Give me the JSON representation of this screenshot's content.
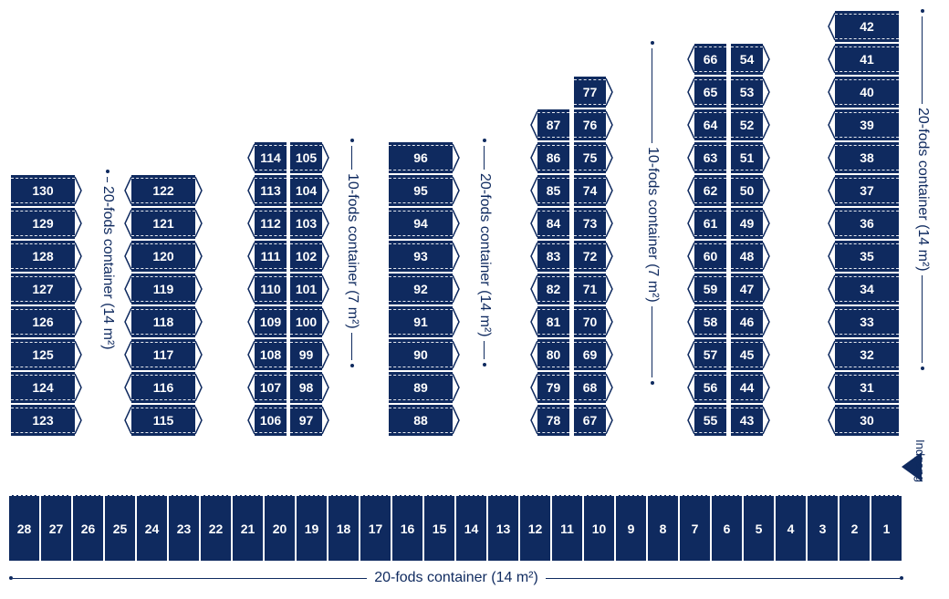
{
  "colors": {
    "unit": "#0f2a5f",
    "text": "#ffffff",
    "label": "#0f2a5f"
  },
  "columns": [
    {
      "id": "c1",
      "units": [
        "130",
        "129",
        "128",
        "127",
        "126",
        "125",
        "124",
        "123"
      ]
    },
    {
      "id": "c2",
      "units": [
        "122",
        "121",
        "120",
        "119",
        "118",
        "117",
        "116",
        "115"
      ]
    },
    {
      "id": "c3a",
      "units": [
        "114",
        "113",
        "112",
        "111",
        "110",
        "109",
        "108",
        "107",
        "106"
      ]
    },
    {
      "id": "c3b",
      "units": [
        "105",
        "104",
        "103",
        "102",
        "101",
        "100",
        "99",
        "98",
        "97"
      ]
    },
    {
      "id": "c4",
      "units": [
        "96",
        "95",
        "94",
        "93",
        "92",
        "91",
        "90",
        "89",
        "88"
      ]
    },
    {
      "id": "c5a",
      "units": [
        "87",
        "86",
        "85",
        "84",
        "83",
        "82",
        "81",
        "80",
        "79",
        "78"
      ]
    },
    {
      "id": "c5b",
      "units": [
        "77",
        "76",
        "75",
        "74",
        "73",
        "72",
        "71",
        "70",
        "69",
        "68",
        "67"
      ]
    },
    {
      "id": "c6a",
      "units": [
        "66",
        "65",
        "64",
        "63",
        "62",
        "61",
        "60",
        "59",
        "58",
        "57",
        "56",
        "55"
      ]
    },
    {
      "id": "c6b",
      "units": [
        "54",
        "53",
        "52",
        "51",
        "50",
        "49",
        "48",
        "47",
        "46",
        "45",
        "44",
        "43"
      ]
    },
    {
      "id": "c7",
      "units": [
        "42",
        "41",
        "40",
        "39",
        "38",
        "37",
        "36",
        "35",
        "34",
        "33",
        "32",
        "31",
        "30"
      ]
    }
  ],
  "bottom_row": [
    "28",
    "27",
    "26",
    "25",
    "24",
    "23",
    "22",
    "21",
    "20",
    "19",
    "18",
    "17",
    "16",
    "15",
    "14",
    "13",
    "12",
    "11",
    "10",
    "9",
    "8",
    "7",
    "6",
    "5",
    "4",
    "3",
    "2",
    "1"
  ],
  "labels": {
    "c1": "20-fods container (14 m²)",
    "c3": "10-fods container (7 m²)",
    "c4": "20-fods container (14 m²)",
    "c5": "10-fods container (7 m²)",
    "c7": "20-fods container (14 m²)",
    "bottom": "20-fods container (14 m²)",
    "entrance": "Indgang"
  },
  "icons": {
    "entrance": "arrow-left-icon"
  }
}
